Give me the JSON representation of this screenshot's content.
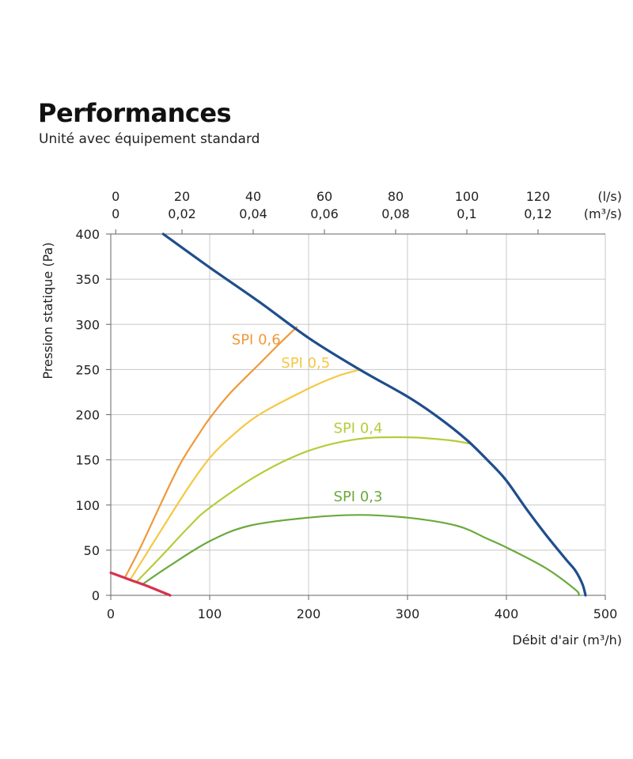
{
  "title": "Performances",
  "subtitle": "Unité avec équipement standard",
  "chart_data": {
    "type": "line",
    "xlabel": "Débit d'air (m³/h)",
    "ylabel": "Pression statique  (Pa)",
    "xlim": [
      0,
      500
    ],
    "ylim": [
      0,
      400
    ],
    "x_ticks": [
      "0",
      "100",
      "200",
      "300",
      "400",
      "500"
    ],
    "y_ticks": [
      "0",
      "50",
      "100",
      "150",
      "200",
      "250",
      "300",
      "350",
      "400"
    ],
    "grid": true,
    "top_axis_ls": {
      "label": "(l/s)",
      "ticks": [
        {
          "label": "0",
          "m3h": 5
        },
        {
          "label": "20",
          "m3h": 72
        },
        {
          "label": "40",
          "m3h": 144
        },
        {
          "label": "60",
          "m3h": 216
        },
        {
          "label": "80",
          "m3h": 288
        },
        {
          "label": "100",
          "m3h": 360
        },
        {
          "label": "120",
          "m3h": 432
        }
      ]
    },
    "top_axis_m3s": {
      "label": "(m³/s)",
      "ticks": [
        {
          "label": "0",
          "m3h": 5
        },
        {
          "label": "0,02",
          "m3h": 72
        },
        {
          "label": "0,04",
          "m3h": 144
        },
        {
          "label": "0,06",
          "m3h": 216
        },
        {
          "label": "0,08",
          "m3h": 288
        },
        {
          "label": "0,1",
          "m3h": 360
        },
        {
          "label": "0,12",
          "m3h": 432
        }
      ]
    },
    "series": [
      {
        "name": "",
        "color": "#1f4e8c",
        "width": 3.2,
        "points": [
          [
            53,
            400
          ],
          [
            100,
            363
          ],
          [
            150,
            325
          ],
          [
            200,
            285
          ],
          [
            250,
            251
          ],
          [
            300,
            220
          ],
          [
            330,
            198
          ],
          [
            360,
            172
          ],
          [
            385,
            145
          ],
          [
            400,
            127
          ],
          [
            420,
            96
          ],
          [
            440,
            67
          ],
          [
            460,
            40
          ],
          [
            470,
            27
          ],
          [
            477,
            12
          ],
          [
            480,
            0
          ]
        ]
      },
      {
        "name": "",
        "color": "#d9304f",
        "width": 3.2,
        "points": [
          [
            0,
            25
          ],
          [
            20,
            17
          ],
          [
            40,
            9
          ],
          [
            60,
            0
          ]
        ]
      },
      {
        "name": "SPI 0,6",
        "color": "#ef9a3a",
        "width": 2.2,
        "label_at": [
          147,
          278
        ],
        "points": [
          [
            14,
            19
          ],
          [
            30,
            53
          ],
          [
            50,
            100
          ],
          [
            70,
            145
          ],
          [
            90,
            180
          ],
          [
            100,
            196
          ],
          [
            120,
            223
          ],
          [
            150,
            256
          ],
          [
            170,
            278
          ],
          [
            188,
            297
          ]
        ]
      },
      {
        "name": "SPI 0,5",
        "color": "#f5c842",
        "width": 2.2,
        "label_at": [
          197,
          252
        ],
        "points": [
          [
            20,
            18
          ],
          [
            40,
            53
          ],
          [
            60,
            88
          ],
          [
            80,
            122
          ],
          [
            100,
            152
          ],
          [
            120,
            174
          ],
          [
            150,
            200
          ],
          [
            200,
            229
          ],
          [
            230,
            243
          ],
          [
            253,
            250
          ]
        ]
      },
      {
        "name": "SPI 0,4",
        "color": "#b5cc3a",
        "width": 2.2,
        "label_at": [
          250,
          180
        ],
        "points": [
          [
            27,
            16
          ],
          [
            50,
            42
          ],
          [
            80,
            77
          ],
          [
            100,
            97
          ],
          [
            150,
            134
          ],
          [
            200,
            160
          ],
          [
            250,
            173
          ],
          [
            300,
            175
          ],
          [
            340,
            172
          ],
          [
            363,
            168
          ]
        ]
      },
      {
        "name": "SPI 0,3",
        "color": "#6aaa3c",
        "width": 2.2,
        "label_at": [
          250,
          104
        ],
        "points": [
          [
            33,
            13
          ],
          [
            60,
            33
          ],
          [
            100,
            60
          ],
          [
            140,
            77
          ],
          [
            200,
            86
          ],
          [
            250,
            89
          ],
          [
            300,
            86
          ],
          [
            350,
            77
          ],
          [
            380,
            63
          ],
          [
            400,
            53
          ],
          [
            440,
            30
          ],
          [
            470,
            6
          ],
          [
            473,
            0
          ]
        ]
      }
    ]
  }
}
